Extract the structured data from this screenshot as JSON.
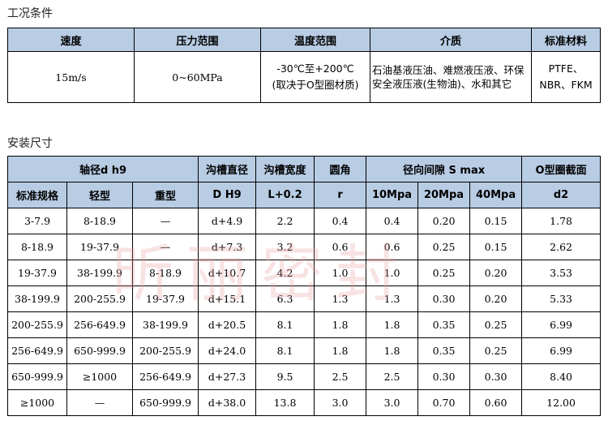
{
  "section1": {
    "title": "工况条件",
    "headers": [
      "速度",
      "压力范围",
      "温度范围",
      "介质",
      "标准材料"
    ],
    "row": {
      "speed": "15m/s",
      "pressure": "0~60MPa",
      "temp_line1": "-30℃至+200℃",
      "temp_line2": "(取决于O型圈材质)",
      "medium": "石油基液压油、难燃液压液、环保安全液压液(生物油)、水和其它",
      "material_line1": "PTFE、",
      "material_line2": "NBR、FKM"
    }
  },
  "section2": {
    "title": "安装尺寸",
    "header_top": {
      "shaft": "轴径d h9",
      "groove_dia": "沟槽直径",
      "groove_width": "沟槽宽度",
      "fillet": "圆角",
      "clearance": "径向间隙 S max",
      "oring": "O型圈截面"
    },
    "header_sub": [
      "标准规格",
      "轻型",
      "重型",
      "D H9",
      "L+0.2",
      "r",
      "10Mpa",
      "20Mpa",
      "40Mpa",
      "d2"
    ],
    "rows": [
      [
        "3-7.9",
        "8-18.9",
        "—",
        "d+4.9",
        "2.2",
        "0.4",
        "0.4",
        "0.20",
        "0.15",
        "1.78"
      ],
      [
        "8-18.9",
        "19-37.9",
        "—",
        "d+7.3",
        "3.2",
        "0.6",
        "0.6",
        "0.25",
        "0.15",
        "2.62"
      ],
      [
        "19-37.9",
        "38-199.9",
        "8-18.9",
        "d+10.7",
        "4.2",
        "1.0",
        "1.0",
        "0.25",
        "0.20",
        "3.53"
      ],
      [
        "38-199.9",
        "200-255.9",
        "19-37.9",
        "d+15.1",
        "6.3",
        "1.3",
        "1.3",
        "0.30",
        "0.20",
        "5.33"
      ],
      [
        "200-255.9",
        "256-649.9",
        "38-199.9",
        "d+20.5",
        "8.1",
        "1.8",
        "1.8",
        "0.35",
        "0.25",
        "6.99"
      ],
      [
        "256-649.9",
        "650-999.9",
        "200-255.9",
        "d+24.0",
        "8.1",
        "1.8",
        "1.8",
        "0.35",
        "0.25",
        "6.99"
      ],
      [
        "650-999.9",
        "≥1000",
        "256-649.9",
        "d+27.3",
        "9.5",
        "2.5",
        "2.5",
        "0.30",
        "0.30",
        "8.40"
      ],
      [
        "≥1000",
        "—",
        "650-999.9",
        "d+38.0",
        "13.8",
        "3.0",
        "3.0",
        "0.70",
        "0.60",
        "12.00"
      ]
    ]
  },
  "watermark": "昕丽密封",
  "colors": {
    "header_bg": "#b8cce4",
    "border": "#000000",
    "watermark": "#e69696"
  }
}
